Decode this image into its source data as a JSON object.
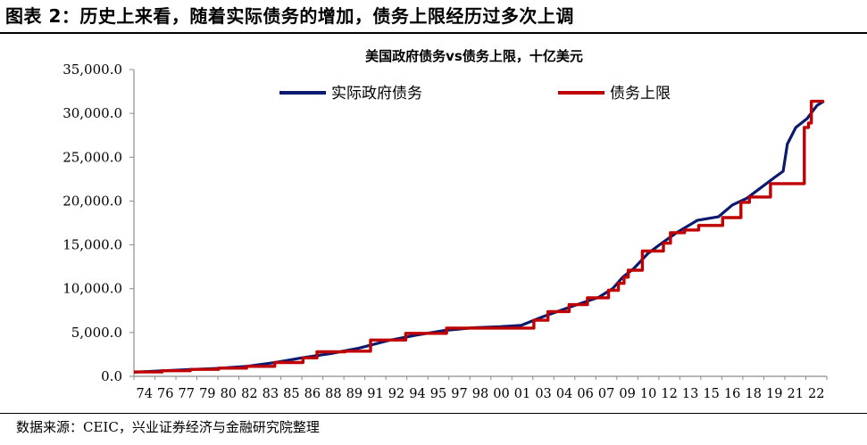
{
  "figure": {
    "title": "图表 2：历史上来看，随着实际债务的增加，债务上限经历过多次上调",
    "source": "数据来源：CEIC，兴业证券经济与金融研究院整理"
  },
  "chart_data": {
    "type": "line",
    "title": "美国政府债务vs债务上限，十亿美元",
    "xlabel": "",
    "ylabel": "",
    "ylim": [
      0,
      35000
    ],
    "xlim": [
      1974,
      2023.2
    ],
    "yticks": [
      0,
      5000,
      10000,
      15000,
      20000,
      25000,
      30000,
      35000
    ],
    "ytick_labels": [
      "0.0",
      "5,000.0",
      "10,000.0",
      "15,000.0",
      "20,000.0",
      "25,000.0",
      "30,000.0",
      "35,000.0"
    ],
    "xtick_labels": [
      "74",
      "76",
      "77",
      "79",
      "80",
      "82",
      "83",
      "85",
      "86",
      "88",
      "89",
      "91",
      "92",
      "94",
      "95",
      "97",
      "98",
      "00",
      "01",
      "03",
      "04",
      "06",
      "07",
      "09",
      "10",
      "12",
      "13",
      "15",
      "16",
      "18",
      "19",
      "21",
      "22"
    ],
    "grid": false,
    "legend_position": "top",
    "colors": {
      "debt": "#0b1a6e",
      "limit": "#c00000",
      "axis": "#8c8c8c"
    },
    "series": [
      {
        "name": "实际政府债务",
        "style": "line",
        "x": [
          1974,
          1976,
          1978,
          1980,
          1982,
          1984,
          1986,
          1988,
          1990,
          1992,
          1994,
          1996,
          1998,
          2000,
          2001.5,
          2003,
          2005,
          2007,
          2008,
          2008.7,
          2009.5,
          2010.5,
          2011.5,
          2012.5,
          2014,
          2015.5,
          2016.5,
          2017.5,
          2018.5,
          2019.5,
          2020.1,
          2020.4,
          2021,
          2021.8,
          2022.5,
          2023
        ],
        "y": [
          480,
          620,
          780,
          910,
          1140,
          1570,
          2130,
          2600,
          3230,
          4060,
          4690,
          5220,
          5530,
          5660,
          5810,
          6780,
          7930,
          9010,
          10020,
          11300,
          12310,
          14020,
          15220,
          16350,
          17800,
          18200,
          19560,
          20300,
          21500,
          22700,
          23400,
          26500,
          28400,
          29400,
          30900,
          31400
        ]
      },
      {
        "name": "债务上限",
        "style": "step",
        "x": [
          1974,
          1976,
          1978,
          1980,
          1982,
          1984,
          1986,
          1987,
          1989,
          1990.8,
          1993.3,
          1996.2,
          2002.4,
          2003.4,
          2004.9,
          2006.2,
          2007.7,
          2008.4,
          2008.8,
          2009.1,
          2010.1,
          2011.6,
          2012.1,
          2013.1,
          2014.1,
          2015.8,
          2017.1,
          2017.7,
          2018.2,
          2019.2,
          2020.1,
          2021.6,
          2021.9,
          2022.1,
          2023
        ],
        "y": [
          495,
          636,
          798,
          935,
          1143,
          1573,
          2111,
          2800,
          2870,
          4145,
          4900,
          5500,
          6400,
          7384,
          8184,
          8965,
          9815,
          10615,
          11315,
          12104,
          14294,
          15194,
          16394,
          16699,
          17212,
          18113,
          19846,
          20456,
          20456,
          21988,
          21988,
          28401,
          28901,
          31381,
          31381
        ]
      }
    ]
  }
}
